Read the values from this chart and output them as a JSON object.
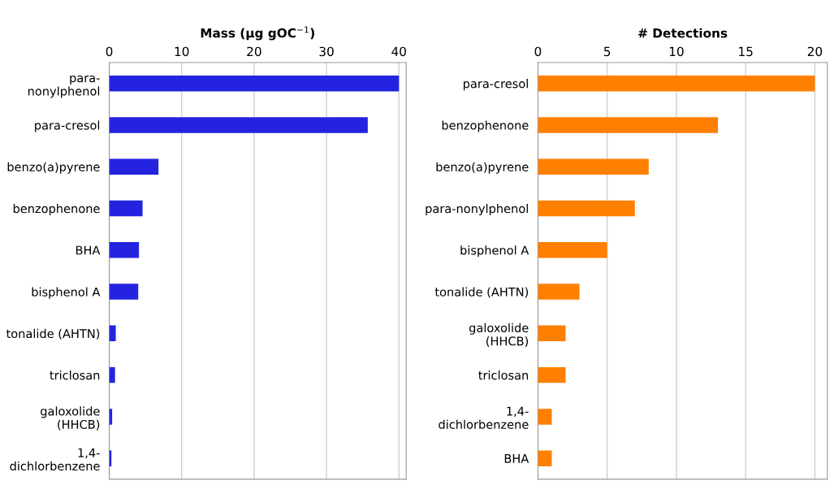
{
  "chart_data": [
    {
      "type": "bar",
      "orientation": "horizontal",
      "xlabel": "Mass (µg gOC$^{−1}$)",
      "categories": [
        "para-\nnonylphenol",
        "para-cresol",
        "benzo(a)pyrene",
        "benzophenone",
        "BHA",
        "bisphenol A",
        "tonalide (AHTN)",
        "triclosan",
        "galoxolide\n(HHCB)",
        "1,4-\ndichlorbenzene"
      ],
      "values": [
        40,
        35.7,
        6.8,
        4.6,
        4.1,
        4.0,
        0.9,
        0.8,
        0.4,
        0.3
      ],
      "color": "#2323e0",
      "xlim": [
        0,
        41
      ],
      "xticks": [
        0,
        10,
        20,
        30,
        40
      ],
      "grid": "x"
    },
    {
      "type": "bar",
      "orientation": "horizontal",
      "xlabel": "# Detections",
      "categories": [
        "para-cresol",
        "benzophenone",
        "benzo(a)pyrene",
        "para-nonylphenol",
        "bisphenol A",
        "tonalide (AHTN)",
        "galoxolide\n(HHCB)",
        "triclosan",
        "1,4-\ndichlorbenzene",
        "BHA"
      ],
      "values": [
        20,
        13,
        8,
        7,
        5,
        3,
        2,
        2,
        1,
        1
      ],
      "color": "#ff7f00",
      "xlim": [
        0,
        20.9
      ],
      "xticks": [
        0,
        5,
        10,
        15,
        20
      ],
      "grid": "x"
    }
  ]
}
